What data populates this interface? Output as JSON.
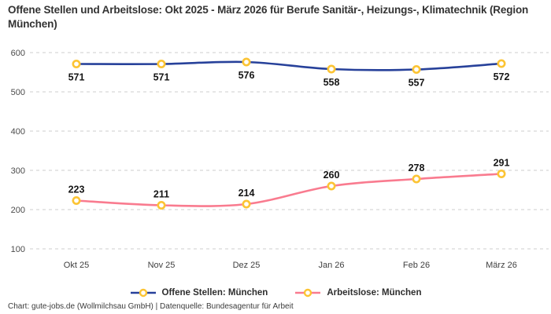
{
  "title": "Offene Stellen und Arbeitslose: Okt 2025 - März 2026 für Berufe Sanitär-, Heizungs-, Klimatechnik (Region München)",
  "footer": "Chart: gute-jobs.de (Wollmilchsau GmbH) | Datenquelle: Bundesagentur für Arbeit",
  "chart_data": {
    "type": "line",
    "title": "Offene Stellen und Arbeitslose: Okt 2025 - März 2026 für Berufe Sanitär-, Heizungs-, Klimatechnik (Region München)",
    "categories": [
      "Okt 25",
      "Nov 25",
      "Dez 25",
      "Jan 26",
      "Feb 26",
      "März 26"
    ],
    "series": [
      {
        "name": "Offene Stellen: München",
        "color": "#27419a",
        "values": [
          571,
          571,
          576,
          558,
          557,
          572
        ],
        "label_position": "below"
      },
      {
        "name": "Arbeitslose: München",
        "color": "#f97b8f",
        "values": [
          223,
          211,
          214,
          260,
          278,
          291
        ],
        "label_position": "above"
      }
    ],
    "marker_color": "#fcc434",
    "marker_fill": "#ffffff",
    "grid_color": "#cdcdcd",
    "grid_style": "dashed-horizontal",
    "ylim": [
      100,
      600
    ],
    "yticks": [
      100,
      200,
      300,
      400,
      500,
      600
    ],
    "xlabel": "",
    "ylabel": "",
    "legend_position": "bottom"
  }
}
